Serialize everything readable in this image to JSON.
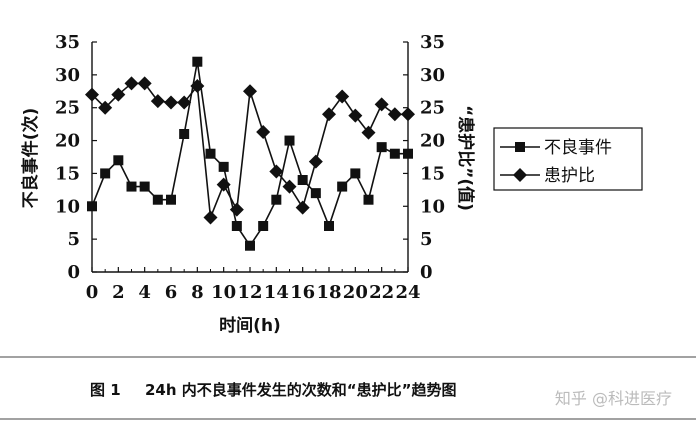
{
  "chart_data": {
    "type": "line",
    "xlabel": "时间(h)",
    "ylabel_left": "不良事件(次)",
    "ylabel_right": "“患护比”(值)",
    "x_ticks": [
      0,
      2,
      4,
      6,
      8,
      10,
      12,
      14,
      16,
      18,
      20,
      22,
      24
    ],
    "y_ticks": [
      0,
      5,
      10,
      15,
      20,
      25,
      30,
      35
    ],
    "xlim": [
      0,
      24
    ],
    "ylim_left": [
      0,
      35
    ],
    "ylim_right": [
      0,
      35
    ],
    "grid": false,
    "legend_position": "right",
    "series": [
      {
        "name": "不良事件",
        "marker": "square",
        "axis": "left",
        "x": [
          0,
          1,
          2,
          3,
          4,
          5,
          6,
          7,
          8,
          9,
          10,
          11,
          12,
          13,
          14,
          15,
          16,
          17,
          18,
          19,
          20,
          21,
          22,
          23,
          24
        ],
        "values": [
          10,
          15,
          17,
          13,
          13,
          11,
          11,
          21,
          32,
          18,
          16,
          7,
          4,
          7,
          11,
          20,
          14,
          12,
          7,
          13,
          15,
          11,
          19,
          18,
          18
        ]
      },
      {
        "name": "患护比",
        "marker": "diamond",
        "axis": "right",
        "x": [
          0,
          1,
          2,
          3,
          4,
          5,
          6,
          7,
          8,
          9,
          10,
          11,
          12,
          13,
          14,
          15,
          16,
          17,
          18,
          19,
          20,
          21,
          22,
          23,
          24
        ],
        "values": [
          27,
          25,
          27,
          28.7,
          28.7,
          26,
          25.8,
          25.8,
          28.3,
          8.3,
          13.3,
          9.5,
          27.5,
          21.3,
          15.3,
          13,
          9.8,
          16.8,
          24,
          26.7,
          23.8,
          21.2,
          25.5,
          24,
          24
        ]
      }
    ]
  },
  "caption": {
    "label": "图 1",
    "text": "24h 内不良事件发生的次数和“患护比”趋势图"
  },
  "watermark": "知乎 @科进医疗",
  "colors": {
    "ink": "#111111",
    "marker_fill": "#111111"
  }
}
